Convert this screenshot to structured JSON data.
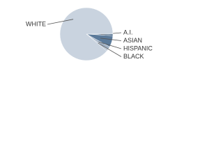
{
  "chart_data": {
    "type": "pie",
    "categories": [
      "A.I.",
      "ASIAN",
      "HISPANIC",
      "BLACK",
      "WHITE"
    ],
    "values": [
      1,
      7,
      2,
      1,
      89
    ],
    "colors": [
      "#3f5f80",
      "#5b7a9a",
      "#9fb0c4",
      "#b7c4d3",
      "#c9d3df"
    ]
  }
}
